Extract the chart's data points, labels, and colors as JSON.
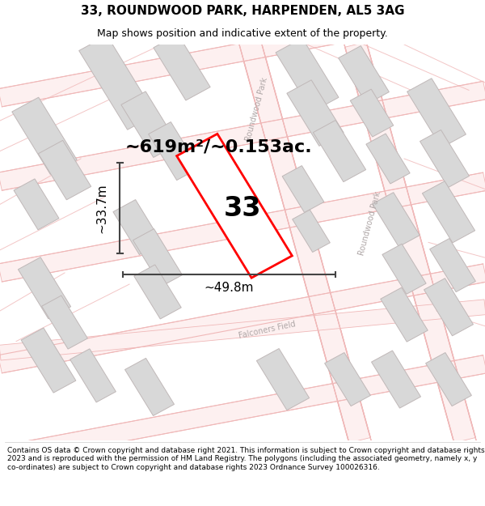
{
  "title": "33, ROUNDWOOD PARK, HARPENDEN, AL5 3AG",
  "subtitle": "Map shows position and indicative extent of the property.",
  "footer": "Contains OS data © Crown copyright and database right 2021. This information is subject to Crown copyright and database rights 2023 and is reproduced with the permission of HM Land Registry. The polygons (including the associated geometry, namely x, y co-ordinates) are subject to Crown copyright and database rights 2023 Ordnance Survey 100026316.",
  "area_label": "~619m²/~0.153ac.",
  "width_label": "~49.8m",
  "height_label": "~33.7m",
  "property_number": "33",
  "map_bg": "#ffffff",
  "road_line_color": "#f0b8b8",
  "road_fill_color": "#fdf0f0",
  "building_color": "#d8d8d8",
  "building_edge": "#c0b8b8",
  "property_color": "#ff0000",
  "dim_color": "#444444",
  "road_label_color": "#b0a8a8",
  "title_fontsize": 11,
  "subtitle_fontsize": 9,
  "footer_fontsize": 6.5,
  "area_fontsize": 16,
  "dim_fontsize": 11,
  "prop_num_fontsize": 24
}
